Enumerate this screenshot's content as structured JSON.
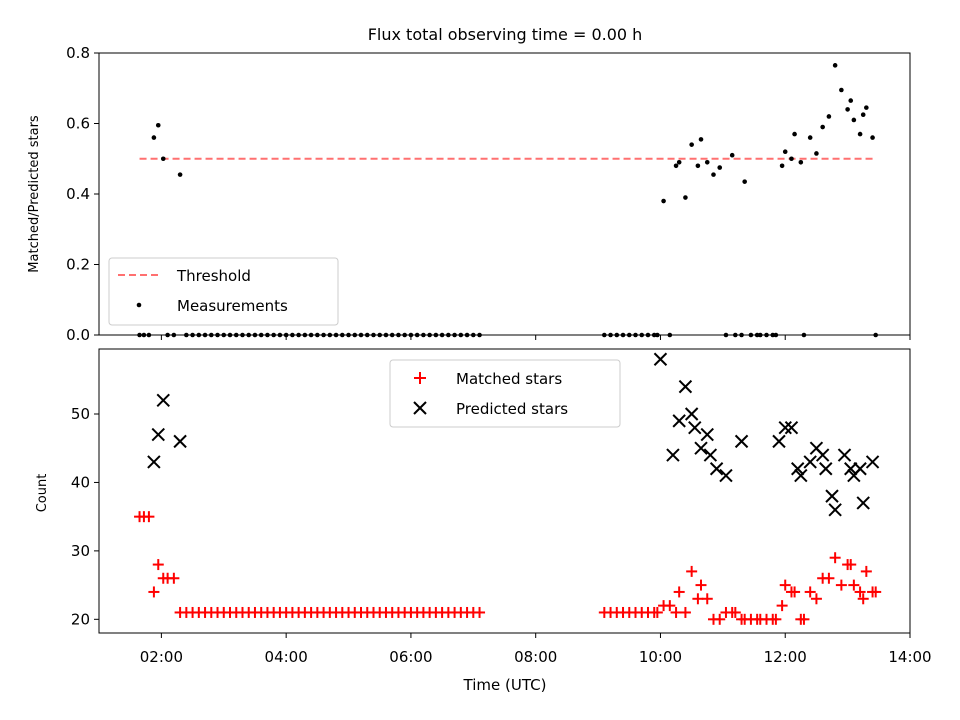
{
  "chart_data": [
    {
      "type": "scatter",
      "title": "Flux total observing time = 0.00 h",
      "xlabel": "",
      "ylabel": "Matched/Predicted stars",
      "x_unit": "hours (UTC)",
      "xlim": [
        1.0,
        14.0
      ],
      "ylim": [
        0.0,
        0.8
      ],
      "yticks": [
        0.0,
        0.2,
        0.4,
        0.6,
        0.8
      ],
      "ytick_labels": [
        "0.0",
        "0.2",
        "0.4",
        "0.6",
        "0.8"
      ],
      "threshold": {
        "name": "Threshold",
        "value": 0.5,
        "x_range": [
          1.65,
          13.45
        ],
        "color": "#ff7070",
        "style": "dashed"
      },
      "series": [
        {
          "name": "Measurements",
          "color": "#000000",
          "marker": "dot",
          "points": [
            [
              1.65,
              0.0
            ],
            [
              1.72,
              0.0
            ],
            [
              1.8,
              0.0
            ],
            [
              1.88,
              0.56
            ],
            [
              1.95,
              0.595
            ],
            [
              2.03,
              0.5
            ],
            [
              2.1,
              0.0
            ],
            [
              2.2,
              0.0
            ],
            [
              2.3,
              0.455
            ],
            [
              2.4,
              0.0
            ],
            [
              2.5,
              0.0
            ],
            [
              2.6,
              0.0
            ],
            [
              2.7,
              0.0
            ],
            [
              2.8,
              0.0
            ],
            [
              2.9,
              0.0
            ],
            [
              3.0,
              0.0
            ],
            [
              3.1,
              0.0
            ],
            [
              3.2,
              0.0
            ],
            [
              3.3,
              0.0
            ],
            [
              3.4,
              0.0
            ],
            [
              3.5,
              0.0
            ],
            [
              3.6,
              0.0
            ],
            [
              3.7,
              0.0
            ],
            [
              3.8,
              0.0
            ],
            [
              3.9,
              0.0
            ],
            [
              4.0,
              0.0
            ],
            [
              4.1,
              0.0
            ],
            [
              4.2,
              0.0
            ],
            [
              4.3,
              0.0
            ],
            [
              4.4,
              0.0
            ],
            [
              4.5,
              0.0
            ],
            [
              4.6,
              0.0
            ],
            [
              4.7,
              0.0
            ],
            [
              4.8,
              0.0
            ],
            [
              4.9,
              0.0
            ],
            [
              5.0,
              0.0
            ],
            [
              5.1,
              0.0
            ],
            [
              5.2,
              0.0
            ],
            [
              5.3,
              0.0
            ],
            [
              5.4,
              0.0
            ],
            [
              5.5,
              0.0
            ],
            [
              5.6,
              0.0
            ],
            [
              5.7,
              0.0
            ],
            [
              5.8,
              0.0
            ],
            [
              5.9,
              0.0
            ],
            [
              6.0,
              0.0
            ],
            [
              6.1,
              0.0
            ],
            [
              6.2,
              0.0
            ],
            [
              6.3,
              0.0
            ],
            [
              6.4,
              0.0
            ],
            [
              6.5,
              0.0
            ],
            [
              6.6,
              0.0
            ],
            [
              6.7,
              0.0
            ],
            [
              6.8,
              0.0
            ],
            [
              6.9,
              0.0
            ],
            [
              7.0,
              0.0
            ],
            [
              7.1,
              0.0
            ],
            [
              9.1,
              0.0
            ],
            [
              9.2,
              0.0
            ],
            [
              9.3,
              0.0
            ],
            [
              9.4,
              0.0
            ],
            [
              9.5,
              0.0
            ],
            [
              9.6,
              0.0
            ],
            [
              9.7,
              0.0
            ],
            [
              9.8,
              0.0
            ],
            [
              9.9,
              0.0
            ],
            [
              9.95,
              0.0
            ],
            [
              10.05,
              0.38
            ],
            [
              10.15,
              0.0
            ],
            [
              10.25,
              0.48
            ],
            [
              10.3,
              0.49
            ],
            [
              10.4,
              0.39
            ],
            [
              10.5,
              0.54
            ],
            [
              10.6,
              0.48
            ],
            [
              10.65,
              0.555
            ],
            [
              10.75,
              0.49
            ],
            [
              10.85,
              0.455
            ],
            [
              10.95,
              0.475
            ],
            [
              11.05,
              0.0
            ],
            [
              11.15,
              0.51
            ],
            [
              11.2,
              0.0
            ],
            [
              11.3,
              0.0
            ],
            [
              11.35,
              0.435
            ],
            [
              11.45,
              0.0
            ],
            [
              11.55,
              0.0
            ],
            [
              11.6,
              0.0
            ],
            [
              11.7,
              0.0
            ],
            [
              11.8,
              0.0
            ],
            [
              11.85,
              0.0
            ],
            [
              11.95,
              0.48
            ],
            [
              12.0,
              0.52
            ],
            [
              12.1,
              0.5
            ],
            [
              12.15,
              0.57
            ],
            [
              12.25,
              0.49
            ],
            [
              12.3,
              0.0
            ],
            [
              12.4,
              0.56
            ],
            [
              12.5,
              0.515
            ],
            [
              12.6,
              0.59
            ],
            [
              12.7,
              0.62
            ],
            [
              12.8,
              0.765
            ],
            [
              12.9,
              0.695
            ],
            [
              13.0,
              0.64
            ],
            [
              13.05,
              0.665
            ],
            [
              13.1,
              0.61
            ],
            [
              13.2,
              0.57
            ],
            [
              13.25,
              0.625
            ],
            [
              13.3,
              0.645
            ],
            [
              13.4,
              0.56
            ],
            [
              13.45,
              0.0
            ]
          ]
        }
      ],
      "legend": {
        "placement": "lower-left",
        "entries": [
          "Threshold",
          "Measurements"
        ]
      },
      "grid": false
    },
    {
      "type": "scatter",
      "title": "",
      "xlabel": "Time (UTC)",
      "ylabel": "Count",
      "x_unit": "hours (UTC)",
      "xlim": [
        1.0,
        14.0
      ],
      "ylim": [
        18,
        59.5
      ],
      "yticks": [
        20,
        30,
        40,
        50
      ],
      "ytick_labels": [
        "20",
        "30",
        "40",
        "50"
      ],
      "xticks": [
        2,
        4,
        6,
        8,
        10,
        12,
        14
      ],
      "xtick_labels": [
        "02:00",
        "04:00",
        "06:00",
        "08:00",
        "10:00",
        "12:00",
        "14:00"
      ],
      "series": [
        {
          "name": "Matched stars",
          "color": "#ff0000",
          "marker": "plus",
          "points": [
            [
              1.65,
              35
            ],
            [
              1.72,
              35
            ],
            [
              1.8,
              35
            ],
            [
              1.88,
              24
            ],
            [
              1.95,
              28
            ],
            [
              2.03,
              26
            ],
            [
              2.1,
              26
            ],
            [
              2.2,
              26
            ],
            [
              2.3,
              21
            ],
            [
              2.4,
              21
            ],
            [
              2.5,
              21
            ],
            [
              2.6,
              21
            ],
            [
              2.7,
              21
            ],
            [
              2.8,
              21
            ],
            [
              2.9,
              21
            ],
            [
              3.0,
              21
            ],
            [
              3.1,
              21
            ],
            [
              3.2,
              21
            ],
            [
              3.3,
              21
            ],
            [
              3.4,
              21
            ],
            [
              3.5,
              21
            ],
            [
              3.6,
              21
            ],
            [
              3.7,
              21
            ],
            [
              3.8,
              21
            ],
            [
              3.9,
              21
            ],
            [
              4.0,
              21
            ],
            [
              4.1,
              21
            ],
            [
              4.2,
              21
            ],
            [
              4.3,
              21
            ],
            [
              4.4,
              21
            ],
            [
              4.5,
              21
            ],
            [
              4.6,
              21
            ],
            [
              4.7,
              21
            ],
            [
              4.8,
              21
            ],
            [
              4.9,
              21
            ],
            [
              5.0,
              21
            ],
            [
              5.1,
              21
            ],
            [
              5.2,
              21
            ],
            [
              5.3,
              21
            ],
            [
              5.4,
              21
            ],
            [
              5.5,
              21
            ],
            [
              5.6,
              21
            ],
            [
              5.7,
              21
            ],
            [
              5.8,
              21
            ],
            [
              5.9,
              21
            ],
            [
              6.0,
              21
            ],
            [
              6.1,
              21
            ],
            [
              6.2,
              21
            ],
            [
              6.3,
              21
            ],
            [
              6.4,
              21
            ],
            [
              6.5,
              21
            ],
            [
              6.6,
              21
            ],
            [
              6.7,
              21
            ],
            [
              6.8,
              21
            ],
            [
              6.9,
              21
            ],
            [
              7.0,
              21
            ],
            [
              7.1,
              21
            ],
            [
              9.1,
              21
            ],
            [
              9.2,
              21
            ],
            [
              9.3,
              21
            ],
            [
              9.4,
              21
            ],
            [
              9.5,
              21
            ],
            [
              9.6,
              21
            ],
            [
              9.7,
              21
            ],
            [
              9.8,
              21
            ],
            [
              9.9,
              21
            ],
            [
              9.95,
              21
            ],
            [
              10.05,
              22
            ],
            [
              10.15,
              22
            ],
            [
              10.25,
              21
            ],
            [
              10.3,
              24
            ],
            [
              10.4,
              21
            ],
            [
              10.5,
              27
            ],
            [
              10.6,
              23
            ],
            [
              10.65,
              25
            ],
            [
              10.75,
              23
            ],
            [
              10.85,
              20
            ],
            [
              10.95,
              20
            ],
            [
              11.05,
              21
            ],
            [
              11.15,
              21
            ],
            [
              11.2,
              21
            ],
            [
              11.3,
              20
            ],
            [
              11.35,
              20
            ],
            [
              11.45,
              20
            ],
            [
              11.55,
              20
            ],
            [
              11.6,
              20
            ],
            [
              11.7,
              20
            ],
            [
              11.8,
              20
            ],
            [
              11.85,
              20
            ],
            [
              11.95,
              22
            ],
            [
              12.0,
              25
            ],
            [
              12.1,
              24
            ],
            [
              12.15,
              24
            ],
            [
              12.25,
              20
            ],
            [
              12.3,
              20
            ],
            [
              12.4,
              24
            ],
            [
              12.5,
              23
            ],
            [
              12.6,
              26
            ],
            [
              12.7,
              26
            ],
            [
              12.8,
              29
            ],
            [
              12.9,
              25
            ],
            [
              13.0,
              28
            ],
            [
              13.05,
              28
            ],
            [
              13.1,
              25
            ],
            [
              13.2,
              24
            ],
            [
              13.25,
              23
            ],
            [
              13.3,
              27
            ],
            [
              13.4,
              24
            ],
            [
              13.45,
              24
            ]
          ]
        },
        {
          "name": "Predicted stars",
          "color": "#000000",
          "marker": "x",
          "points": [
            [
              1.88,
              43
            ],
            [
              1.95,
              47
            ],
            [
              2.03,
              52
            ],
            [
              2.3,
              46
            ],
            [
              10.0,
              58
            ],
            [
              10.2,
              44
            ],
            [
              10.3,
              49
            ],
            [
              10.4,
              54
            ],
            [
              10.5,
              50
            ],
            [
              10.55,
              48
            ],
            [
              10.65,
              45
            ],
            [
              10.75,
              47
            ],
            [
              10.8,
              44
            ],
            [
              10.9,
              42
            ],
            [
              11.05,
              41
            ],
            [
              11.3,
              46
            ],
            [
              11.9,
              46
            ],
            [
              12.0,
              48
            ],
            [
              12.1,
              48
            ],
            [
              12.2,
              42
            ],
            [
              12.25,
              41
            ],
            [
              12.4,
              43
            ],
            [
              12.5,
              45
            ],
            [
              12.6,
              44
            ],
            [
              12.65,
              42
            ],
            [
              12.75,
              38
            ],
            [
              12.8,
              36
            ],
            [
              12.95,
              44
            ],
            [
              13.05,
              42
            ],
            [
              13.1,
              41
            ],
            [
              13.2,
              42
            ],
            [
              13.25,
              37
            ],
            [
              13.4,
              43
            ]
          ]
        }
      ],
      "legend": {
        "placement": "upper-center",
        "entries": [
          "Matched stars",
          "Predicted stars"
        ]
      },
      "grid": false
    }
  ]
}
